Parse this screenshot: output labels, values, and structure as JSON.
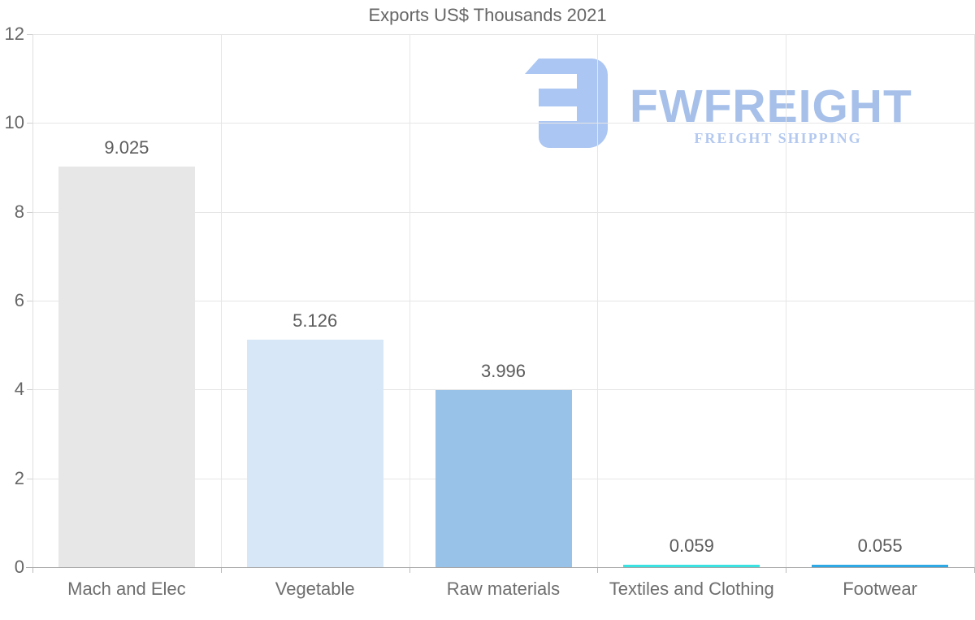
{
  "title": "Exports US$ Thousands 2021",
  "watermark": {
    "brand": "FWFREIGHT",
    "tagline": "FREIGHT SHIPPING",
    "icon": "fwfreight-logo-icon",
    "icon_color": "#abc6f2",
    "brand_color": "#a6c0ea",
    "tagline_color": "#b4c9ef"
  },
  "chart_data": {
    "type": "bar",
    "title": "Exports US$ Thousands 2021",
    "categories": [
      "Mach and Elec",
      "Vegetable",
      "Raw materials",
      "Textiles and Clothing",
      "Footwear"
    ],
    "values": [
      9.025,
      5.126,
      3.996,
      0.059,
      0.055
    ],
    "value_labels": [
      "9.025",
      "5.126",
      "3.996",
      "0.059",
      "0.055"
    ],
    "bar_colors": [
      "#e7e7e7",
      "#d8e7f8",
      "#99c2e8",
      "#3ae2e2",
      "#2fa9e6"
    ],
    "xlabel": "",
    "ylabel": "",
    "ylim": [
      0,
      12
    ],
    "y_ticks": [
      0,
      2,
      4,
      6,
      8,
      10,
      12
    ],
    "grid": true,
    "legend": "none"
  },
  "colors": {
    "background": "#ffffff",
    "title_text": "#666666",
    "tick_label": "#666666",
    "category_label": "#6e6e6e",
    "value_label": "#5c5c5c",
    "gridline": "#e6e6e6",
    "x_axis_line": "#a6a6a6",
    "y_axis_line": "#dedede"
  }
}
